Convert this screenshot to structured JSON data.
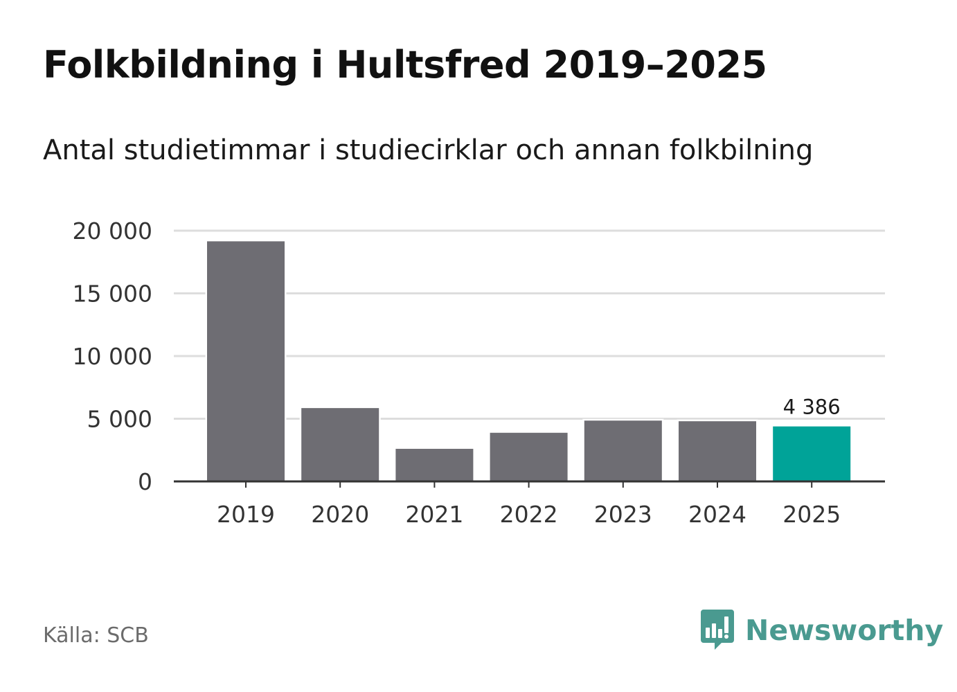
{
  "header": {
    "title": "Folkbildning i Hultsfred 2019–2025",
    "subtitle": "Antal studietimmar i studiecirklar och annan folkbilning"
  },
  "footer": {
    "source": "Källa: SCB",
    "brand": "Newsworthy"
  },
  "colors": {
    "bar": "#6e6d73",
    "highlight": "#00a398",
    "grid": "#dddddd",
    "axis": "#333333",
    "brand": "#4a9a90"
  },
  "chart_data": {
    "type": "bar",
    "title": "Folkbildning i Hultsfred 2019–2025",
    "subtitle": "Antal studietimmar i studiecirklar och annan folkbilning",
    "xlabel": "",
    "ylabel": "",
    "categories": [
      "2019",
      "2020",
      "2021",
      "2022",
      "2023",
      "2024",
      "2025"
    ],
    "values": [
      19150,
      5850,
      2600,
      3880,
      4850,
      4800,
      4386
    ],
    "highlight_index": 6,
    "data_labels": [
      {
        "index": 6,
        "text": "4 386"
      }
    ],
    "ylim": [
      0,
      20000
    ],
    "yticks": [
      0,
      5000,
      10000,
      15000,
      20000
    ],
    "ytick_labels": [
      "0",
      "5 000",
      "10 000",
      "15 000",
      "20 000"
    ],
    "grid": true,
    "legend": "none"
  }
}
